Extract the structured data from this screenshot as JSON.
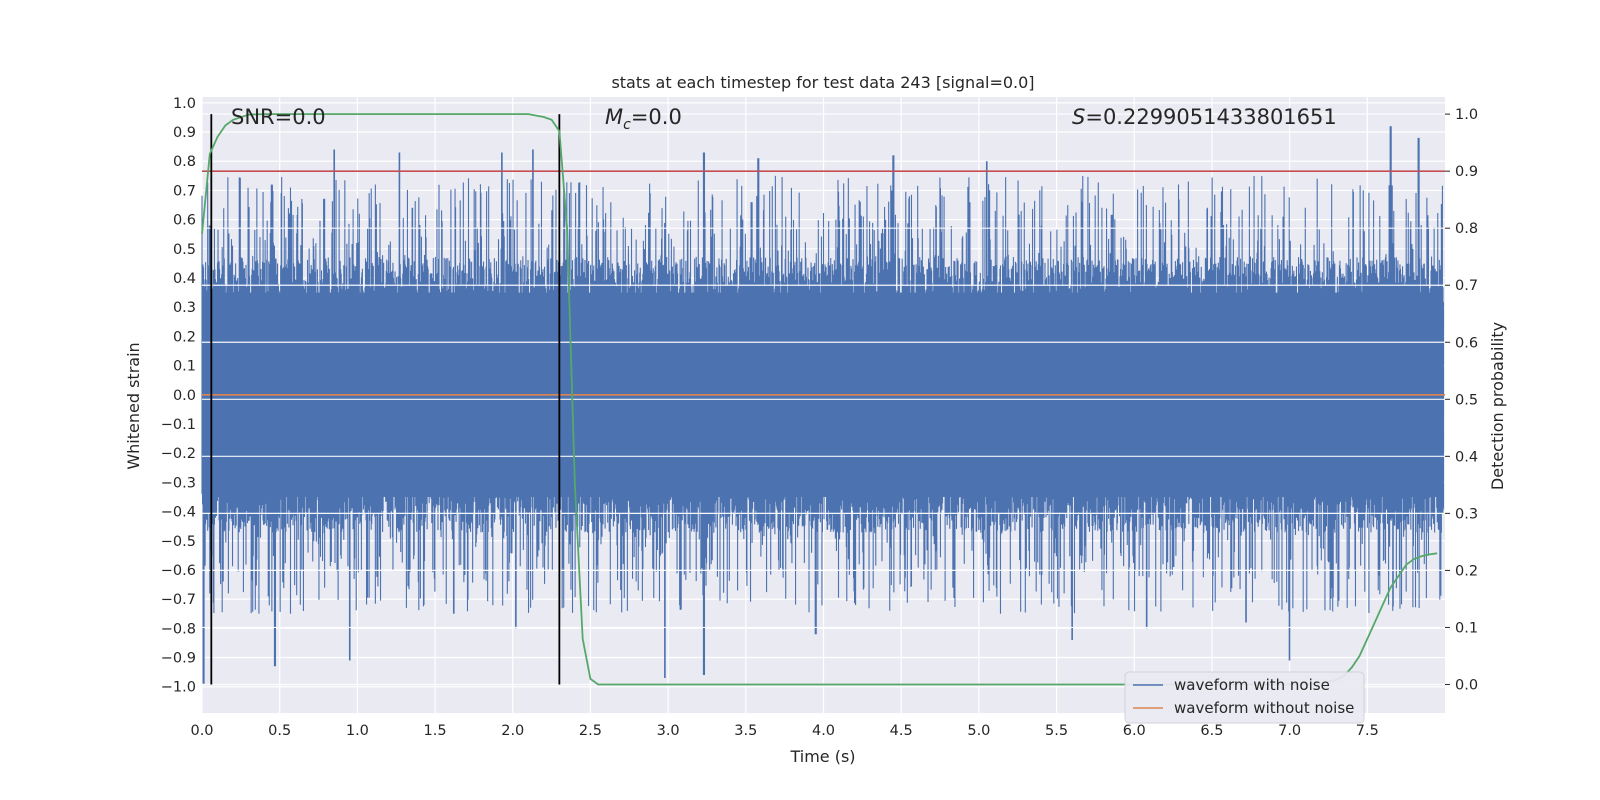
{
  "chart_data": {
    "type": "line",
    "title": "stats at each timestep for test data 243 [signal=0.0]",
    "xlabel": "Time (s)",
    "ylabel": "Whitened strain",
    "ylabel_right": "Detection probability",
    "xlim": [
      0.0,
      8.0
    ],
    "ylim": [
      -1.09,
      1.02
    ],
    "ylim_right": [
      -0.05,
      1.03
    ],
    "grid": true,
    "xticks": [
      "0.0",
      "0.5",
      "1.0",
      "1.5",
      "2.0",
      "2.5",
      "3.0",
      "3.5",
      "4.0",
      "4.5",
      "5.0",
      "5.5",
      "6.0",
      "6.5",
      "7.0",
      "7.5"
    ],
    "yticks_left": [
      "1.0",
      "0.9",
      "0.8",
      "0.7",
      "0.6",
      "0.5",
      "0.4",
      "0.3",
      "0.2",
      "0.1",
      "0.0",
      "−0.1",
      "−0.2",
      "−0.3",
      "−0.4",
      "−0.5",
      "−0.6",
      "−0.7",
      "−0.8",
      "−0.9",
      "−1.0"
    ],
    "yticks_right": [
      "1.0",
      "0.9",
      "0.8",
      "0.7",
      "0.6",
      "0.5",
      "0.4",
      "0.3",
      "0.2",
      "0.1",
      "0.0"
    ],
    "annotations": {
      "snr": "SNR=0.0",
      "mc_symbol": "M",
      "mc_sub": "c",
      "mc_value": "=0.0",
      "s_symbol": "S",
      "s_value": "=0.2299051433801651"
    },
    "threshold_right": 0.9,
    "event_lines_x": [
      0.06,
      2.3
    ],
    "noise_envelope": {
      "typical_abs": 0.35,
      "max_peaks": [
        {
          "x": 0.05,
          "y": 0.58
        },
        {
          "x": 0.45,
          "y": 0.72
        },
        {
          "x": 0.85,
          "y": 0.84
        },
        {
          "x": 1.27,
          "y": 0.83
        },
        {
          "x": 1.93,
          "y": 0.83
        },
        {
          "x": 2.13,
          "y": 0.84
        },
        {
          "x": 3.23,
          "y": 0.83
        },
        {
          "x": 3.58,
          "y": 0.81
        },
        {
          "x": 4.45,
          "y": 0.82
        },
        {
          "x": 5.05,
          "y": 0.8
        },
        {
          "x": 7.65,
          "y": 0.92
        },
        {
          "x": 7.83,
          "y": 0.88
        }
      ],
      "min_peaks": [
        {
          "x": 0.01,
          "y": -0.99
        },
        {
          "x": 0.47,
          "y": -0.93
        },
        {
          "x": 0.95,
          "y": -0.91
        },
        {
          "x": 1.62,
          "y": -0.75
        },
        {
          "x": 2.02,
          "y": -0.8
        },
        {
          "x": 2.98,
          "y": -0.97
        },
        {
          "x": 3.23,
          "y": -0.96
        },
        {
          "x": 3.95,
          "y": -0.82
        },
        {
          "x": 5.6,
          "y": -0.84
        },
        {
          "x": 6.08,
          "y": -0.8
        },
        {
          "x": 6.72,
          "y": -0.78
        },
        {
          "x": 7.0,
          "y": -0.91
        }
      ]
    },
    "series": [
      {
        "name": "waveform with noise",
        "color": "#4c72b0",
        "axis": "left",
        "kind": "noise"
      },
      {
        "name": "waveform without noise",
        "color": "#dd8452",
        "axis": "left",
        "x": [
          0.0,
          8.0
        ],
        "y": [
          0.0,
          0.0
        ]
      },
      {
        "name": "detection probability",
        "color": "#55a868",
        "axis": "right",
        "x": [
          0.0,
          0.05,
          0.1,
          0.15,
          0.2,
          0.3,
          0.4,
          0.5,
          1.0,
          1.5,
          2.0,
          2.1,
          2.2,
          2.25,
          2.3,
          2.35,
          2.4,
          2.45,
          2.5,
          2.55,
          2.6,
          3.0,
          4.0,
          5.0,
          6.0,
          7.0,
          7.2,
          7.3,
          7.35,
          7.4,
          7.45,
          7.5,
          7.55,
          7.6,
          7.65,
          7.7,
          7.75,
          7.8,
          7.85,
          7.9,
          7.95
        ],
        "y": [
          0.79,
          0.93,
          0.96,
          0.98,
          0.99,
          0.999,
          1.0,
          1.0,
          1.0,
          1.0,
          1.0,
          1.0,
          0.995,
          0.99,
          0.97,
          0.8,
          0.35,
          0.08,
          0.01,
          0.0,
          0.0,
          0.0,
          0.0,
          0.0,
          0.0,
          0.0,
          0.002,
          0.008,
          0.015,
          0.03,
          0.05,
          0.08,
          0.11,
          0.14,
          0.17,
          0.19,
          0.21,
          0.22,
          0.225,
          0.228,
          0.23
        ]
      },
      {
        "name": "threshold",
        "color": "#c44e52",
        "axis": "right",
        "x": [
          0.0,
          8.0
        ],
        "y": [
          0.9,
          0.9
        ]
      }
    ],
    "legend": {
      "position": "lower-right",
      "entries": [
        {
          "label": "waveform with noise",
          "color": "#4c72b0"
        },
        {
          "label": "waveform without noise",
          "color": "#dd8452"
        }
      ]
    }
  }
}
